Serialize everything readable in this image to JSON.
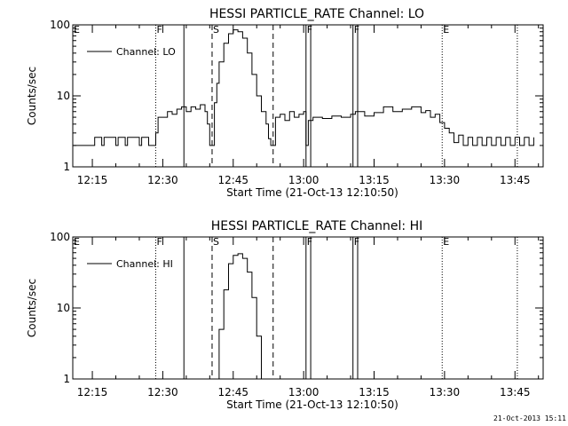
{
  "footer": {
    "timestamp": "21-Oct-2013 15:11"
  },
  "chart_data": [
    {
      "type": "line",
      "title": "HESSI PARTICLE_RATE Channel: LO",
      "xlabel": "Start Time (21-Oct-13 12:10:50)",
      "ylabel": "Counts/sec",
      "y_scale": "log",
      "ylim": [
        1,
        100
      ],
      "y_ticks": [
        1,
        10,
        100
      ],
      "y_tick_labels": [
        "1",
        "10",
        "100"
      ],
      "xlim": [
        "12:10:50",
        "13:51:00"
      ],
      "x_ticks": [
        "12:15",
        "12:30",
        "12:45",
        "13:00",
        "13:15",
        "13:30",
        "13:45"
      ],
      "legend": {
        "label": "Channel: LO",
        "placement": "top-left"
      },
      "markers": [
        {
          "letter": "E",
          "time": "12:10:50",
          "style": "none"
        },
        {
          "letter": "F",
          "time": "12:28:30",
          "style": "dotted"
        },
        {
          "letter": "",
          "time": "12:34:30",
          "style": "solid"
        },
        {
          "letter": "S",
          "time": "12:40:30",
          "style": "dashed"
        },
        {
          "letter": "",
          "time": "12:53:30",
          "style": "dashed"
        },
        {
          "letter": "F",
          "time": "13:00:30",
          "style": "solid"
        },
        {
          "letter": "",
          "time": "13:01:30",
          "style": "solid"
        },
        {
          "letter": "F",
          "time": "13:10:30",
          "style": "solid"
        },
        {
          "letter": "",
          "time": "13:11:30",
          "style": "solid"
        },
        {
          "letter": "E",
          "time": "13:29:30",
          "style": "dotted"
        },
        {
          "letter": "",
          "time": "13:45:30",
          "style": "dotted"
        }
      ],
      "series": [
        {
          "name": "Channel: LO",
          "x": [
            "12:11:00",
            "12:15:00",
            "12:15:30",
            "12:17:00",
            "12:17:30",
            "12:20:00",
            "12:20:30",
            "12:22:00",
            "12:22:30",
            "12:25:00",
            "12:25:30",
            "12:27:00",
            "12:28:30",
            "12:29:00",
            "12:31:00",
            "12:32:00",
            "12:33:00",
            "12:34:00",
            "12:35:00",
            "12:36:00",
            "12:37:00",
            "12:38:00",
            "12:39:00",
            "12:39:30",
            "12:40:00",
            "12:40:30",
            "12:41:00",
            "12:41:30",
            "12:42:00",
            "12:43:00",
            "12:44:00",
            "12:45:00",
            "12:46:00",
            "12:47:00",
            "12:48:00",
            "12:49:00",
            "12:50:00",
            "12:51:00",
            "12:52:00",
            "12:52:30",
            "12:53:00",
            "12:53:30",
            "12:54:00",
            "12:55:00",
            "12:56:00",
            "12:57:00",
            "12:58:00",
            "12:59:00",
            "13:00:00",
            "13:00:30",
            "13:01:00",
            "13:02:00",
            "13:04:00",
            "13:06:00",
            "13:08:00",
            "13:10:00",
            "13:11:00",
            "13:13:00",
            "13:15:00",
            "13:17:00",
            "13:19:00",
            "13:21:00",
            "13:23:00",
            "13:25:00",
            "13:26:00",
            "13:27:00",
            "13:28:00",
            "13:29:00",
            "13:30:00",
            "13:31:00",
            "13:32:00",
            "13:33:00",
            "13:34:00",
            "13:35:00",
            "13:36:00",
            "13:37:00",
            "13:38:00",
            "13:39:00",
            "13:40:00",
            "13:41:00",
            "13:42:00",
            "13:43:00",
            "13:44:00",
            "13:45:00",
            "13:46:00",
            "13:47:00",
            "13:48:00",
            "13:49:00"
          ],
          "values": [
            2,
            2,
            2.6,
            2,
            2.6,
            2,
            2.6,
            2,
            2.6,
            2,
            2.6,
            2,
            3,
            5,
            6,
            5.5,
            6.5,
            7,
            6,
            7,
            6.5,
            7.5,
            6,
            4,
            2,
            2,
            8,
            15,
            30,
            55,
            75,
            85,
            80,
            65,
            40,
            20,
            10,
            6,
            4,
            2.5,
            2,
            2,
            5,
            5.5,
            4.5,
            6,
            5,
            5.5,
            6,
            2,
            4.5,
            5,
            4.8,
            5.2,
            5,
            5.5,
            6,
            5.2,
            5.8,
            7,
            6,
            6.5,
            7,
            5.8,
            6.2,
            5,
            5.5,
            4.2,
            3.5,
            3,
            2.2,
            2.8,
            2,
            2.6,
            2,
            2.6,
            2,
            2.6,
            2,
            2.6,
            2,
            2.6,
            2,
            2.6,
            2,
            2.6,
            2,
            2.6
          ]
        }
      ]
    },
    {
      "type": "line",
      "title": "HESSI PARTICLE_RATE Channel: HI",
      "xlabel": "Start Time (21-Oct-13 12:10:50)",
      "ylabel": "Counts/sec",
      "y_scale": "log",
      "ylim": [
        1,
        100
      ],
      "y_ticks": [
        1,
        10,
        100
      ],
      "y_tick_labels": [
        "1",
        "10",
        "100"
      ],
      "xlim": [
        "12:10:50",
        "13:51:00"
      ],
      "x_ticks": [
        "12:15",
        "12:30",
        "12:45",
        "13:00",
        "13:15",
        "13:30",
        "13:45"
      ],
      "legend": {
        "label": "Channel: HI",
        "placement": "top-left"
      },
      "markers": [
        {
          "letter": "E",
          "time": "12:10:50",
          "style": "none"
        },
        {
          "letter": "F",
          "time": "12:28:30",
          "style": "dotted"
        },
        {
          "letter": "",
          "time": "12:34:30",
          "style": "solid"
        },
        {
          "letter": "S",
          "time": "12:40:30",
          "style": "dashed"
        },
        {
          "letter": "",
          "time": "12:53:30",
          "style": "dashed"
        },
        {
          "letter": "F",
          "time": "13:00:30",
          "style": "solid"
        },
        {
          "letter": "",
          "time": "13:01:30",
          "style": "solid"
        },
        {
          "letter": "F",
          "time": "13:10:30",
          "style": "solid"
        },
        {
          "letter": "",
          "time": "13:11:30",
          "style": "solid"
        },
        {
          "letter": "E",
          "time": "13:29:30",
          "style": "dotted"
        },
        {
          "letter": "",
          "time": "13:45:30",
          "style": "dotted"
        }
      ],
      "series": [
        {
          "name": "Channel: HI",
          "x": [
            "12:41:30",
            "12:42:00",
            "12:43:00",
            "12:44:00",
            "12:45:00",
            "12:46:00",
            "12:47:00",
            "12:48:00",
            "12:49:00",
            "12:50:00",
            "12:51:00"
          ],
          "values": [
            1,
            5,
            18,
            42,
            55,
            58,
            50,
            32,
            14,
            4,
            1
          ]
        }
      ]
    }
  ]
}
